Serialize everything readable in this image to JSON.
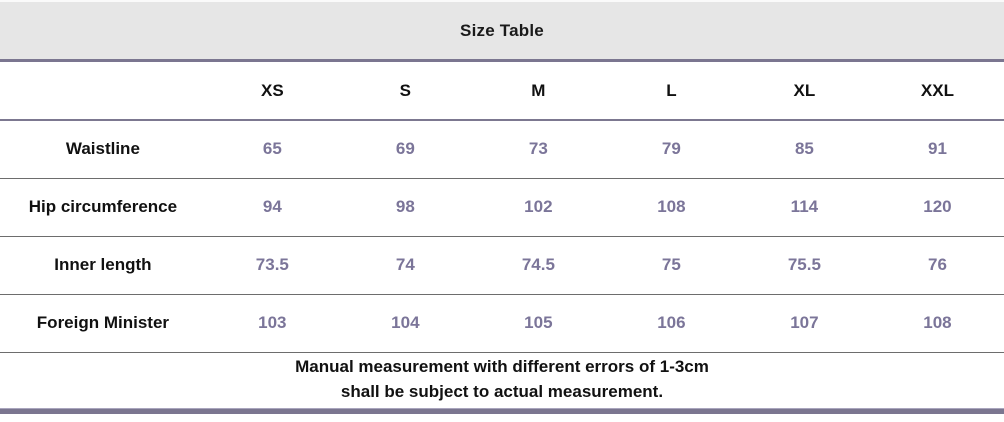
{
  "title": "Size Table",
  "table": {
    "columns": [
      "XS",
      "S",
      "M",
      "L",
      "XL",
      "XXL"
    ],
    "rows": [
      {
        "label": "Waistline",
        "values": [
          "65",
          "69",
          "73",
          "79",
          "85",
          "91"
        ]
      },
      {
        "label": "Hip circumference",
        "values": [
          "94",
          "98",
          "102",
          "108",
          "114",
          "120"
        ]
      },
      {
        "label": "Inner length",
        "values": [
          "73.5",
          "74",
          "74.5",
          "75",
          "75.5",
          "76"
        ]
      },
      {
        "label": "Foreign Minister",
        "values": [
          "103",
          "104",
          "105",
          "106",
          "107",
          "108"
        ]
      }
    ]
  },
  "footer": {
    "line1": "Manual measurement with different errors of 1-3cm",
    "line2": "shall be subject to actual measurement."
  },
  "colors": {
    "header_bg": "#e6e6e6",
    "accent_line": "#7b7690",
    "value_text": "#7b7599",
    "row_separator": "#6d6d6d",
    "text": "#111111"
  }
}
